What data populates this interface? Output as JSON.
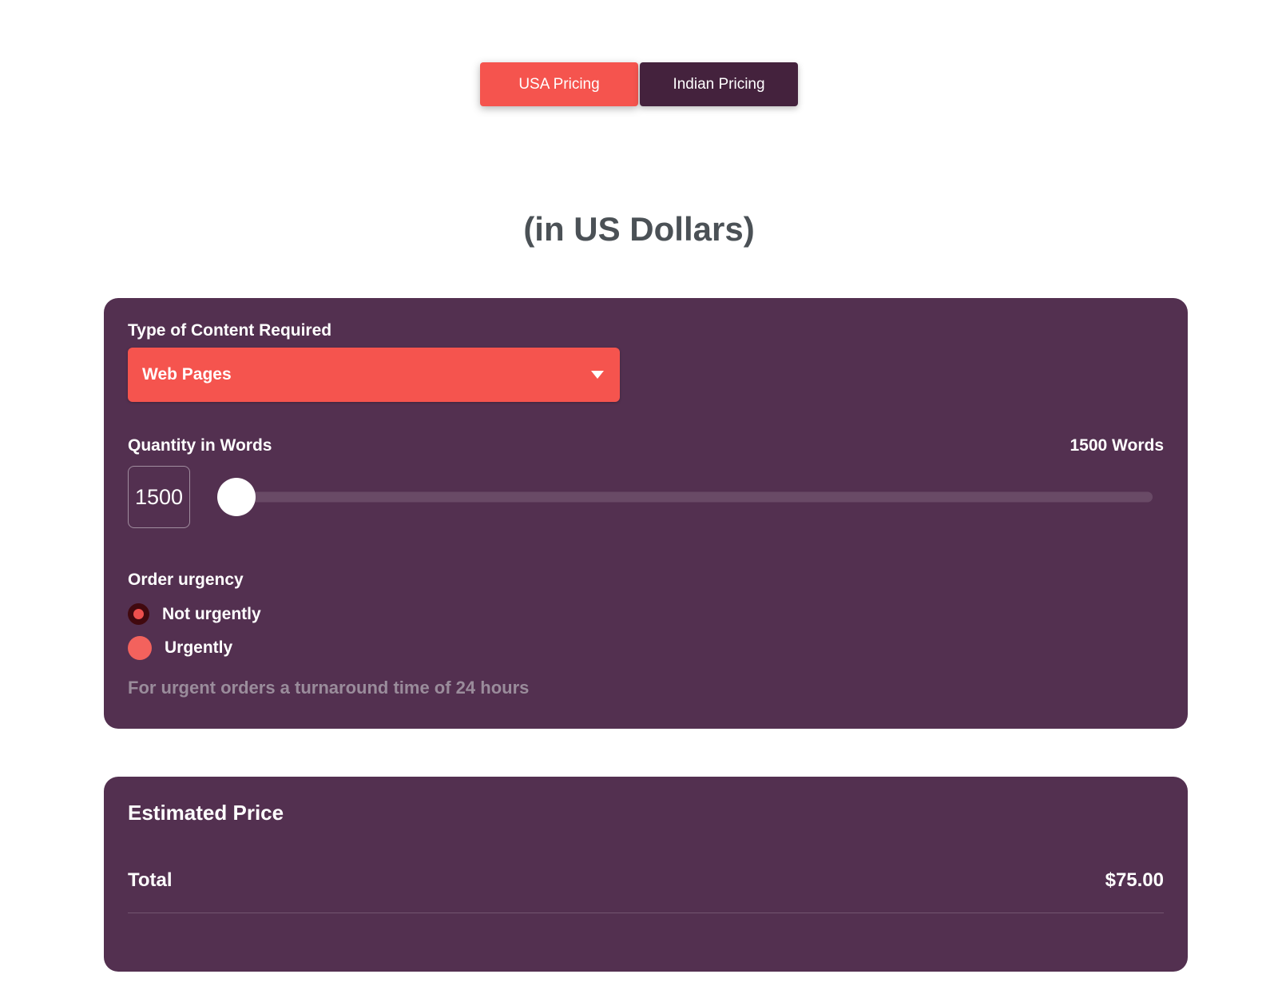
{
  "tabs": [
    {
      "label": "USA Pricing",
      "active": true
    },
    {
      "label": "Indian Pricing",
      "active": false
    }
  ],
  "heading": "(in US Dollars)",
  "form": {
    "content_type": {
      "label": "Type of Content Required",
      "selected": "Web Pages"
    },
    "quantity": {
      "label": "Quantity in Words",
      "value": "1500",
      "display": "1500 Words"
    },
    "urgency": {
      "label": "Order urgency",
      "options": [
        {
          "label": "Not urgently",
          "selected": true
        },
        {
          "label": "Urgently",
          "selected": false
        }
      ],
      "note": "For urgent orders a turnaround time of 24 hours"
    }
  },
  "price": {
    "heading": "Estimated Price",
    "total_label": "Total",
    "total_value": "$75.00"
  },
  "colors": {
    "accent": "#f5544e",
    "card_background": "#533050",
    "tab_inactive_background": "#44223d",
    "heading_text": "#4b5156",
    "muted_text": "#9a8c9b",
    "radio_selected_ring": "#41090f"
  }
}
